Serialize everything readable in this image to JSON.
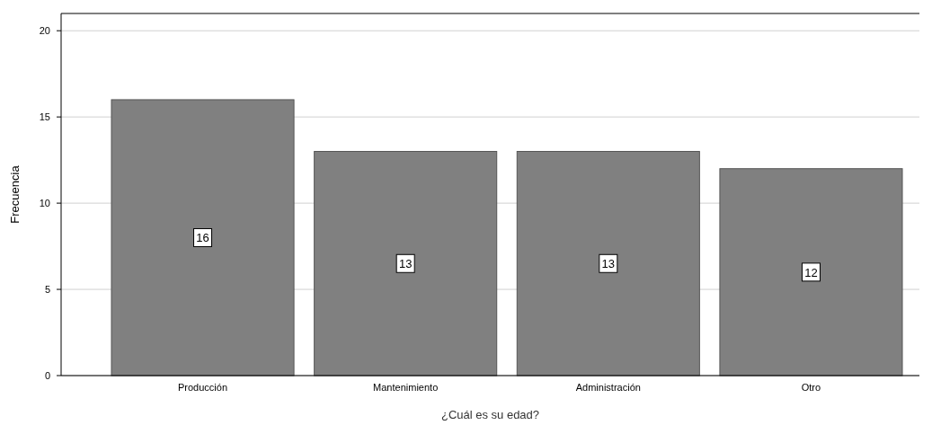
{
  "chart_data": {
    "type": "bar",
    "xlabel": "¿Cuál es su edad?",
    "ylabel": "Frecuencia",
    "categories": [
      "Producción",
      "Mantenimiento",
      "Administración",
      "Otro"
    ],
    "values": [
      16,
      13,
      13,
      12
    ],
    "color": "#808080",
    "ylim": [
      0,
      21
    ],
    "yticks": [
      0,
      5,
      10,
      15,
      20
    ],
    "grid": "y",
    "data_labels": true
  }
}
